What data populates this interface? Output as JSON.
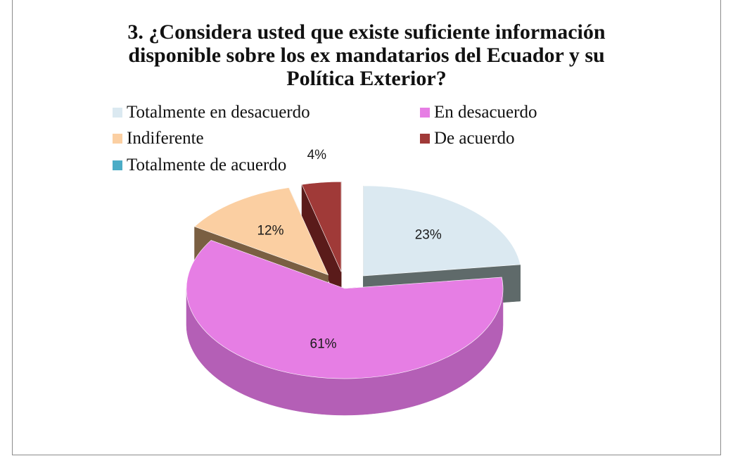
{
  "chart_data": {
    "type": "pie",
    "title_lines": [
      "3. ¿Considera usted que existe suficiente información",
      "disponible sobre los ex mandatarios del Ecuador y su",
      "Política Exterior?"
    ],
    "legend_position": "top",
    "categories": [
      "Totalmente en desacuerdo",
      "En desacuerdo",
      "Indiferente",
      "De acuerdo",
      "Totalmente de acuerdo"
    ],
    "values": [
      23,
      61,
      12,
      4,
      0
    ],
    "labels": [
      "23%",
      "61%",
      "12%",
      "4%",
      ""
    ],
    "colors": [
      "#dbe9f1",
      "#e67ee4",
      "#fbcfa2",
      "#a03a38",
      "#4bacc6"
    ],
    "side_colors": [
      "#5f6a6a",
      "#b45fb6",
      "#7a5f42",
      "#5a1b1a",
      "#2b7f95"
    ],
    "style": "3d-exploded"
  }
}
